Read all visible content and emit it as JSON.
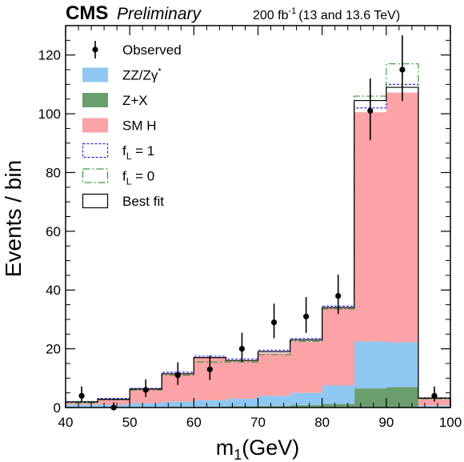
{
  "header": {
    "experiment": "CMS",
    "status": "Preliminary",
    "lumi_prefix": "200 fb",
    "lumi_exp": "-1",
    "energy": "(13 and 13.6 TeV)"
  },
  "chart_data": {
    "type": "bar",
    "subtype": "stacked-histogram",
    "xlabel_main": "m",
    "xlabel_sub": "1",
    "xlabel_unit": "(GeV)",
    "ylabel": "Events / bin",
    "xlim": [
      40,
      100
    ],
    "ylim": [
      0,
      130
    ],
    "xticks": [
      40,
      50,
      60,
      70,
      80,
      90,
      100
    ],
    "yticks": [
      0,
      20,
      40,
      60,
      80,
      100,
      120
    ],
    "bin_edges": [
      40,
      45,
      50,
      55,
      60,
      65,
      70,
      75,
      80,
      85,
      90,
      95,
      100
    ],
    "bin_centers": [
      42.5,
      47.5,
      52.5,
      57.5,
      62.5,
      67.5,
      72.5,
      77.5,
      82.5,
      87.5,
      92.5,
      97.5
    ],
    "stack": [
      {
        "key": "zx",
        "color": "#6a9e6c",
        "values": [
          0.1,
          0.1,
          0.2,
          0.2,
          0.3,
          0.4,
          0.5,
          0.8,
          1.2,
          6.5,
          7.0,
          0.3
        ]
      },
      {
        "key": "zz",
        "color": "#8ec8f2",
        "values": [
          0.9,
          0.9,
          1.3,
          1.8,
          2.2,
          2.6,
          3.5,
          4.2,
          6.3,
          16.0,
          15.2,
          0.4
        ]
      },
      {
        "key": "smh",
        "color": "#fba3a6",
        "values": [
          0.9,
          1.8,
          4.8,
          9.5,
          14.5,
          12.8,
          14.5,
          17.5,
          26.5,
          78.0,
          85.0,
          2.5
        ]
      }
    ],
    "step_lines": [
      {
        "key": "fl1",
        "color": "#2a2ad8",
        "dash": "3,2",
        "values": [
          2.0,
          3.1,
          6.5,
          12.0,
          17.5,
          16.5,
          19.5,
          23.5,
          34.5,
          102.0,
          110.0,
          3.3
        ]
      },
      {
        "key": "fl0",
        "color": "#3a9a3a",
        "dash": "9,3,2,3",
        "values": [
          1.6,
          2.6,
          6.0,
          11.0,
          15.5,
          15.5,
          18.0,
          22.5,
          33.5,
          106.0,
          117.0,
          3.0
        ]
      },
      {
        "key": "bestfit",
        "color": "#000000",
        "dash": "",
        "values": [
          1.9,
          2.8,
          6.3,
          11.5,
          17.0,
          16.0,
          19.0,
          23.0,
          34.0,
          104.5,
          109.0,
          3.2
        ]
      }
    ],
    "observed": {
      "x": [
        42.5,
        47.5,
        52.5,
        57.5,
        62.5,
        67.5,
        72.5,
        77.5,
        82.5,
        87.5,
        92.5,
        97.5
      ],
      "y": [
        4,
        0,
        6,
        11,
        13,
        20,
        29,
        31,
        38,
        101,
        115,
        4
      ],
      "err_low": [
        2.0,
        0,
        2.4,
        3.3,
        3.6,
        4.5,
        5.4,
        5.6,
        6.2,
        10.0,
        10.7,
        2.0
      ],
      "err_high": [
        3.2,
        1.8,
        3.6,
        4.4,
        4.7,
        5.5,
        6.4,
        6.6,
        7.2,
        11.0,
        11.7,
        3.2
      ]
    },
    "legend": {
      "placement": "top-left",
      "entries": [
        {
          "key": "obs",
          "kind": "marker",
          "text": "Observed",
          "sup": "",
          "sub": "",
          "suffix": ""
        },
        {
          "key": "zz",
          "kind": "fill",
          "color": "#8ec8f2",
          "text": "ZZ/Zγ",
          "sup": "*",
          "sub": "",
          "suffix": ""
        },
        {
          "key": "zx",
          "kind": "fill",
          "color": "#6a9e6c",
          "text": "Z+X",
          "sup": "",
          "sub": "",
          "suffix": ""
        },
        {
          "key": "smh",
          "kind": "fill",
          "color": "#fba3a6",
          "text": "SM H",
          "sup": "",
          "sub": "",
          "suffix": ""
        },
        {
          "key": "fl1",
          "kind": "line",
          "color": "#2a2ad8",
          "dash": "3,2",
          "text": "f",
          "sup": "",
          "sub": "L",
          "suffix": " = 1"
        },
        {
          "key": "fl0",
          "kind": "line",
          "color": "#3a9a3a",
          "dash": "9,3,2,3",
          "text": "f",
          "sup": "",
          "sub": "L",
          "suffix": " = 0"
        },
        {
          "key": "bestfit",
          "kind": "line",
          "color": "#000000",
          "dash": "",
          "text": "Best fit",
          "sup": "",
          "sub": "",
          "suffix": ""
        }
      ]
    }
  }
}
